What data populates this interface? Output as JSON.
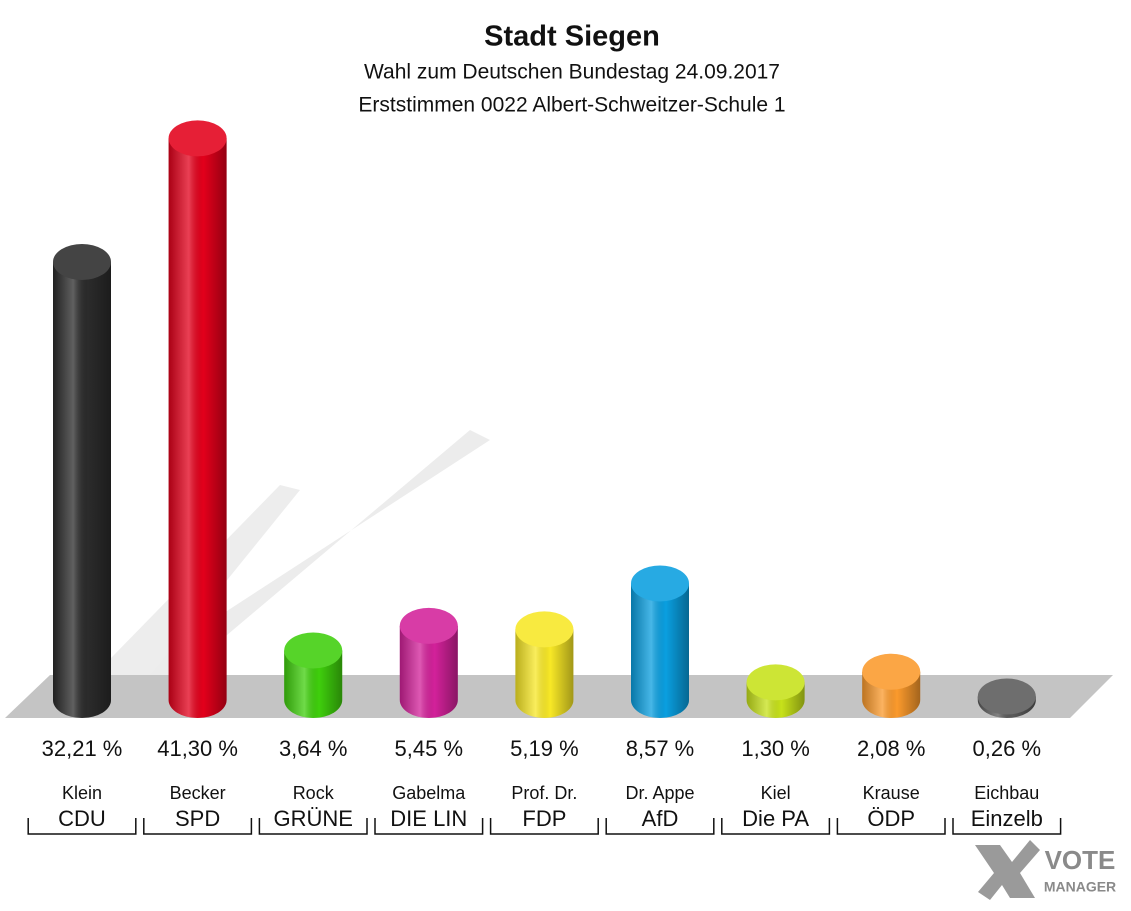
{
  "chart_data": {
    "type": "bar",
    "title": "Stadt Siegen",
    "subtitle": [
      "Wahl zum Deutschen Bundestag 24.09.2017",
      "Erststimmen 0022 Albert-Schweitzer-Schule 1"
    ],
    "categories": [
      "Klein",
      "Becker",
      "Rock",
      "Gabelma",
      "Prof. Dr.",
      "Dr. Appe",
      "Kiel",
      "Krause",
      "Eichbau"
    ],
    "parties": [
      "CDU",
      "SPD",
      "GRÜNE",
      "DIE LIN",
      "FDP",
      "AfD",
      "Die PA",
      "ÖDP",
      "Einzelb"
    ],
    "values": [
      32.21,
      41.3,
      3.64,
      5.45,
      5.19,
      8.57,
      1.3,
      2.08,
      0.26
    ],
    "value_labels": [
      "32,21 %",
      "41,30 %",
      "3,64 %",
      "5,45 %",
      "5,19 %",
      "8,57 %",
      "1,30 %",
      "2,08 %",
      "0,26 %"
    ],
    "colors": [
      "#2b2b2b",
      "#e3001b",
      "#3fcf0c",
      "#d3219a",
      "#f8e826",
      "#0a9fe0",
      "#c7e21a",
      "#fb9a2c",
      "#5a5a5a"
    ],
    "logo": [
      "VOTE",
      "MANAGER"
    ]
  }
}
